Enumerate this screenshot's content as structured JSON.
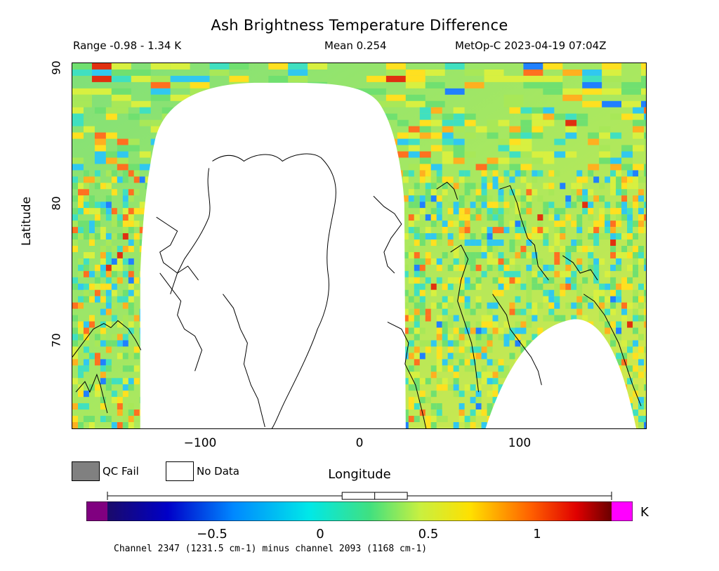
{
  "header": {
    "title": "Ash Brightness Temperature Difference",
    "range": "Range -0.98 - 1.34 K",
    "mean": "Mean 0.254",
    "satellite_time": "MetOp-C 2023-04-19 07:04Z"
  },
  "axes": {
    "ylabel": "Latitude",
    "xlabel": "Longitude",
    "yticks": [
      "90",
      "80",
      "70"
    ],
    "xticks": [
      "−100",
      "0",
      "100"
    ],
    "xlim": [
      -180,
      180
    ],
    "ylim": [
      63.4,
      90
    ]
  },
  "legend": {
    "qc_fail_label": "QC Fail",
    "no_data_label": "No Data",
    "qc_fail_color": "#808080",
    "no_data_color": "#ffffff"
  },
  "colorbar": {
    "unit": "K",
    "ticks": [
      "−0.5",
      "0",
      "0.5",
      "1"
    ],
    "tick_values": [
      -0.5,
      0,
      0.5,
      1
    ],
    "range": [
      -0.98,
      1.34
    ],
    "underflow_color": "#800080",
    "overflow_color": "#ff00ff",
    "box_quartiles": [
      0.1,
      0.25,
      0.4
    ]
  },
  "footer": "Channel 2347 (1231.5 cm-1) minus channel 2093 (1168 cm-1)"
}
